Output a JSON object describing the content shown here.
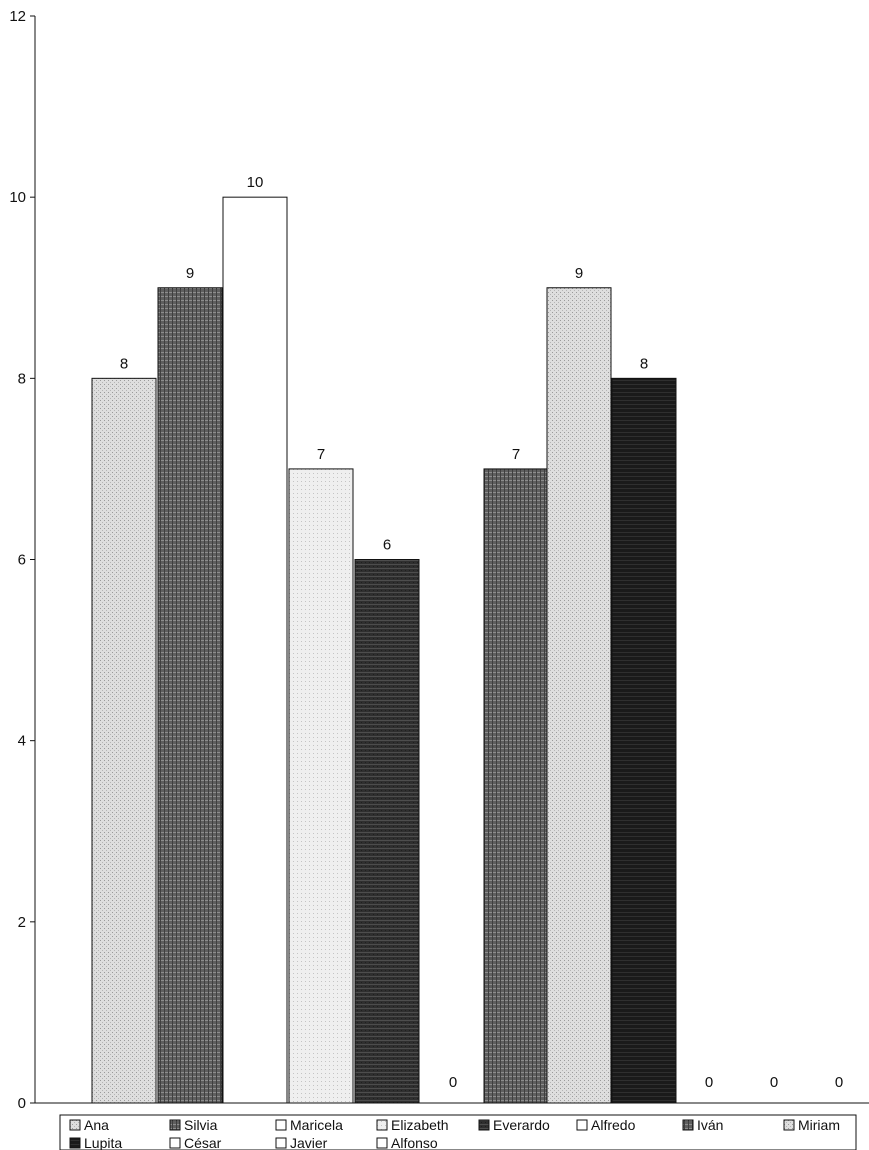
{
  "chart_data": {
    "type": "bar",
    "title": "",
    "xlabel": "",
    "ylabel": "",
    "ylim": [
      0,
      12
    ],
    "yticks": [
      "0",
      "2",
      "4",
      "6",
      "8",
      "10",
      "12"
    ],
    "grid": false,
    "legend_position": "bottom",
    "series": [
      {
        "name": "Ana",
        "value": 8,
        "label": "8",
        "fill": "pattern-light"
      },
      {
        "name": "Silvia",
        "value": 9,
        "label": "9",
        "fill": "pattern-dark-grid"
      },
      {
        "name": "Maricela",
        "value": 10,
        "label": "10",
        "fill": "white"
      },
      {
        "name": "Elizabeth",
        "value": 7,
        "label": "7",
        "fill": "pattern-very-light"
      },
      {
        "name": "Everardo",
        "value": 6,
        "label": "6",
        "fill": "pattern-darker"
      },
      {
        "name": "Alfredo",
        "value": 0,
        "label": "0",
        "fill": "white"
      },
      {
        "name": "Iván",
        "value": 7,
        "label": "7",
        "fill": "pattern-dark-grid"
      },
      {
        "name": "Miriam",
        "value": 9,
        "label": "9",
        "fill": "pattern-light"
      },
      {
        "name": "Lupita",
        "value": 8,
        "label": "8",
        "fill": "pattern-darkest"
      },
      {
        "name": "César",
        "value": 0,
        "label": "0",
        "fill": "white"
      },
      {
        "name": "Javier",
        "value": 0,
        "label": "0",
        "fill": "white"
      },
      {
        "name": "Alfonso",
        "value": 0,
        "label": "0",
        "fill": "white"
      }
    ],
    "colors": {
      "axis": "#111111",
      "stroke": "#111111",
      "light": "#d6d6d6",
      "very_light": "#ececec",
      "medium": "#7a7a7a",
      "dark": "#4a4a4a",
      "darker": "#2a2a2a",
      "darkest": "#121212"
    }
  }
}
